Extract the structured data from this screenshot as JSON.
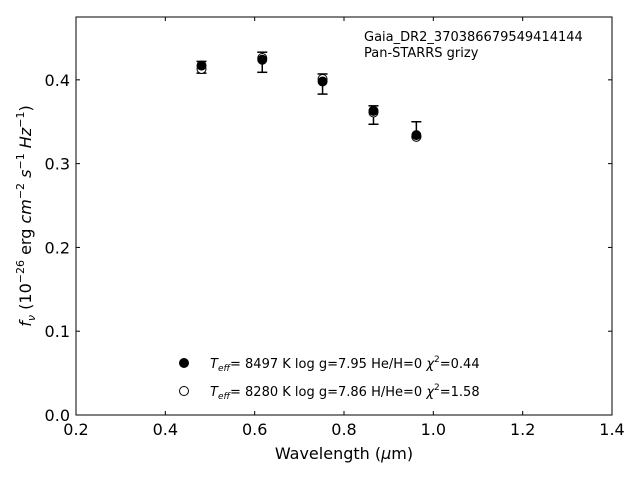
{
  "chart_data": {
    "type": "scatter",
    "title": "",
    "annotation": {
      "object": "Gaia_DR2_370386679549414144",
      "photometry": "Pan-STARRS grizy"
    },
    "xlabel": "Wavelength (μm)",
    "ylabel": "f_ν (10^-26 erg cm^-2 s^-1 Hz^-1)",
    "xlim": [
      0.2,
      1.4
    ],
    "ylim": [
      0.0,
      0.475
    ],
    "xticks": [
      0.2,
      0.4,
      0.6,
      0.8,
      1.0,
      1.2,
      1.4
    ],
    "xtick_labels": [
      "0.2",
      "0.4",
      "0.6",
      "0.8",
      "1.0",
      "1.2",
      "1.4"
    ],
    "yticks": [
      0.0,
      0.1,
      0.2,
      0.3,
      0.4
    ],
    "ytick_labels": [
      "0.0",
      "0.1",
      "0.2",
      "0.3",
      "0.4"
    ],
    "grid": false,
    "legend_position": "bottom-center",
    "observed": {
      "x": [
        0.481,
        0.617,
        0.752,
        0.866,
        0.962
      ],
      "y": [
        0.415,
        0.421,
        0.395,
        0.358,
        0.341
      ],
      "err": [
        0.007,
        0.012,
        0.012,
        0.011,
        0.009
      ]
    },
    "series": [
      {
        "name": "T_eff=  8497 K  log g=7.95  He/H=0  χ²=0.44",
        "label_parts": {
          "value": "8497 K  log g=7.95  He/H=0  ",
          "chi": "=0.44"
        },
        "marker": "filled-circle",
        "x": [
          0.481,
          0.617,
          0.752,
          0.866,
          0.962
        ],
        "y": [
          0.417,
          0.424,
          0.398,
          0.363,
          0.334
        ]
      },
      {
        "name": "T_eff=  8280 K  log g=7.86  H/He=0  χ²=1.58",
        "label_parts": {
          "value": "8280 K  log g=7.86  H/He=0  ",
          "chi": "=1.58"
        },
        "marker": "open-circle",
        "x": [
          0.481,
          0.617,
          0.752,
          0.866,
          0.962
        ],
        "y": [
          0.413,
          0.426,
          0.401,
          0.361,
          0.332
        ]
      }
    ]
  }
}
